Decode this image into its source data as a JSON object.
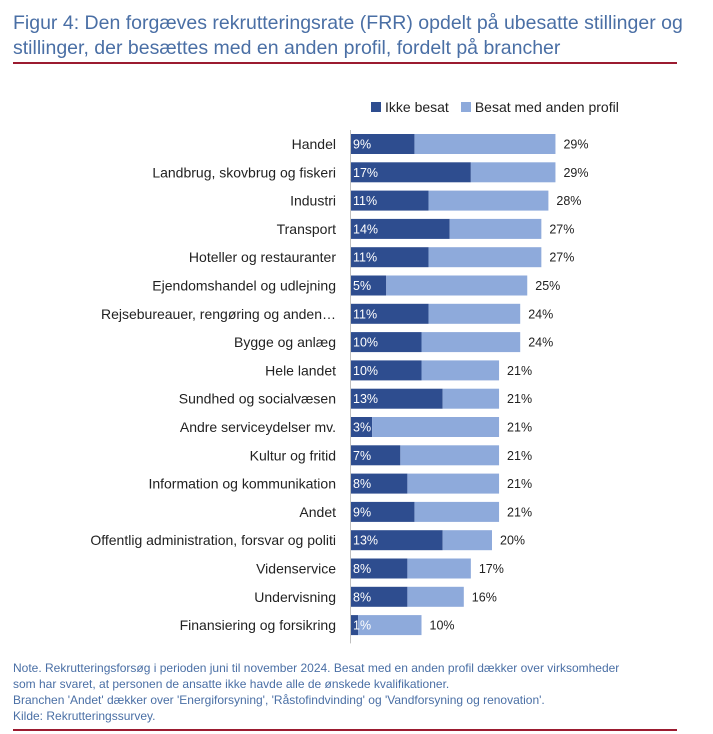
{
  "figure": {
    "title": "Figur 4: Den forgæves rekrutteringsrate (FRR) opdelt på ubesatte stillinger og stillinger, der besættes med en anden profil, fordelt på brancher"
  },
  "colors": {
    "ikke_besat": "#2e4d8f",
    "anden_profil": "#8eaadb",
    "title": "#4a6fa5",
    "rule": "#9b1b30"
  },
  "chart_data": {
    "type": "bar",
    "orientation": "horizontal",
    "stacked": true,
    "categories": [
      "Handel",
      "Landbrug, skovbrug og fiskeri",
      "Industri",
      "Transport",
      "Hoteller og restauranter",
      "Ejendomshandel og udlejning",
      "Rejsebureauer, rengøring og anden…",
      "Bygge og anlæg",
      "Hele landet",
      "Sundhed og socialvæsen",
      "Andre serviceydelser mv.",
      "Kultur og fritid",
      "Information og kommunikation",
      "Andet",
      "Offentlig administration, forsvar og politi",
      "Videnservice",
      "Undervisning",
      "Finansiering og forsikring"
    ],
    "series": [
      {
        "name": "Ikke besat",
        "values": [
          9,
          17,
          11,
          14,
          11,
          5,
          11,
          10,
          10,
          13,
          3,
          7,
          8,
          9,
          13,
          8,
          8,
          1
        ],
        "labels": [
          "9%",
          "17%",
          "11%",
          "14%",
          "11%",
          "5%",
          "11%",
          "10%",
          "10%",
          "13%",
          "3%",
          "7%",
          "8%",
          "9%",
          "13%",
          "8%",
          "8%",
          "1%"
        ]
      },
      {
        "name": "Besat med anden profil",
        "values": [
          20,
          12,
          17,
          13,
          16,
          20,
          13,
          14,
          11,
          8,
          18,
          14,
          13,
          12,
          7,
          9,
          8,
          9
        ]
      }
    ],
    "totals": [
      29,
      29,
      28,
      27,
      27,
      25,
      24,
      24,
      21,
      21,
      21,
      21,
      21,
      21,
      20,
      17,
      16,
      10
    ],
    "total_labels": [
      "29%",
      "29%",
      "28%",
      "27%",
      "27%",
      "25%",
      "24%",
      "24%",
      "21%",
      "21%",
      "21%",
      "21%",
      "21%",
      "21%",
      "20%",
      "17%",
      "16%",
      "10%"
    ],
    "xlim": [
      0,
      30
    ],
    "legend": [
      "Ikke besat",
      "Besat med anden profil"
    ],
    "legend_position": "top"
  },
  "notes": {
    "line1": "Note. Rekrutteringsforsøg i perioden juni til november 2024. Besat med en anden profil dækker over virksomheder",
    "line2": "som har svaret, at personen de ansatte ikke havde alle de ønskede kvalifikationer.",
    "line3": "Branchen 'Andet' dækker over 'Energiforsyning', 'Råstofindvinding' og 'Vandforsyning og renovation'.",
    "line4": "Kilde: Rekrutteringssurvey."
  }
}
